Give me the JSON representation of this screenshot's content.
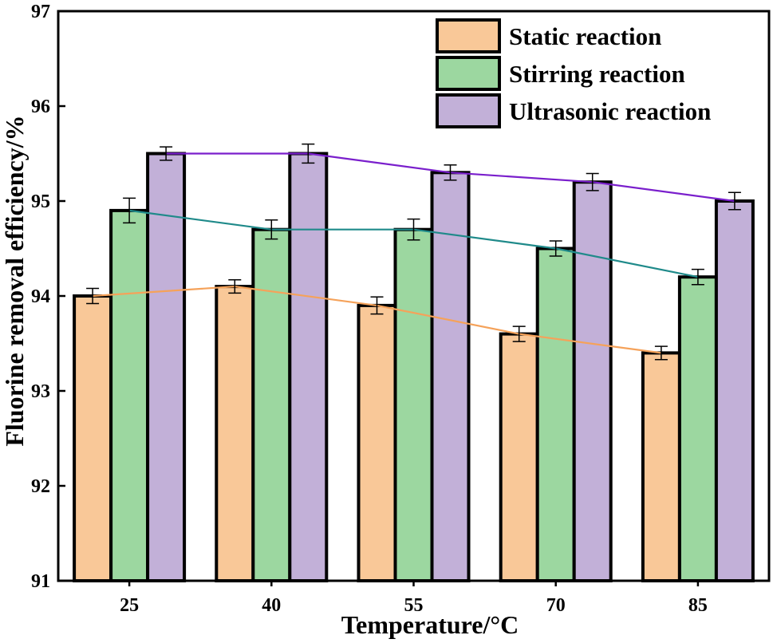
{
  "chart_data": {
    "type": "bar",
    "title": "",
    "xlabel": "Temperature/°C",
    "ylabel": "Fluorine removal efficiency/%",
    "categories": [
      "25",
      "40",
      "55",
      "70",
      "85"
    ],
    "ylim": [
      91,
      97
    ],
    "yticks": [
      91,
      92,
      93,
      94,
      95,
      96,
      97
    ],
    "grid": false,
    "legend_position": "top-right",
    "series": [
      {
        "name": "Static reaction",
        "values": [
          94.0,
          94.1,
          93.9,
          93.6,
          93.4
        ],
        "errors": [
          0.08,
          0.07,
          0.09,
          0.08,
          0.07
        ],
        "bar_color": "#f9c898",
        "line_color": "#f5a25a"
      },
      {
        "name": "Stirring reaction",
        "values": [
          94.9,
          94.7,
          94.7,
          94.5,
          94.2
        ],
        "errors": [
          0.13,
          0.1,
          0.11,
          0.08,
          0.08
        ],
        "bar_color": "#9cd7a0",
        "line_color": "#1f8a8a"
      },
      {
        "name": "Ultrasonic reaction",
        "values": [
          95.5,
          95.5,
          95.3,
          95.2,
          95.0
        ],
        "errors": [
          0.07,
          0.1,
          0.08,
          0.09,
          0.09
        ],
        "bar_color": "#c2b0d8",
        "line_color": "#7a1fcc"
      }
    ]
  }
}
